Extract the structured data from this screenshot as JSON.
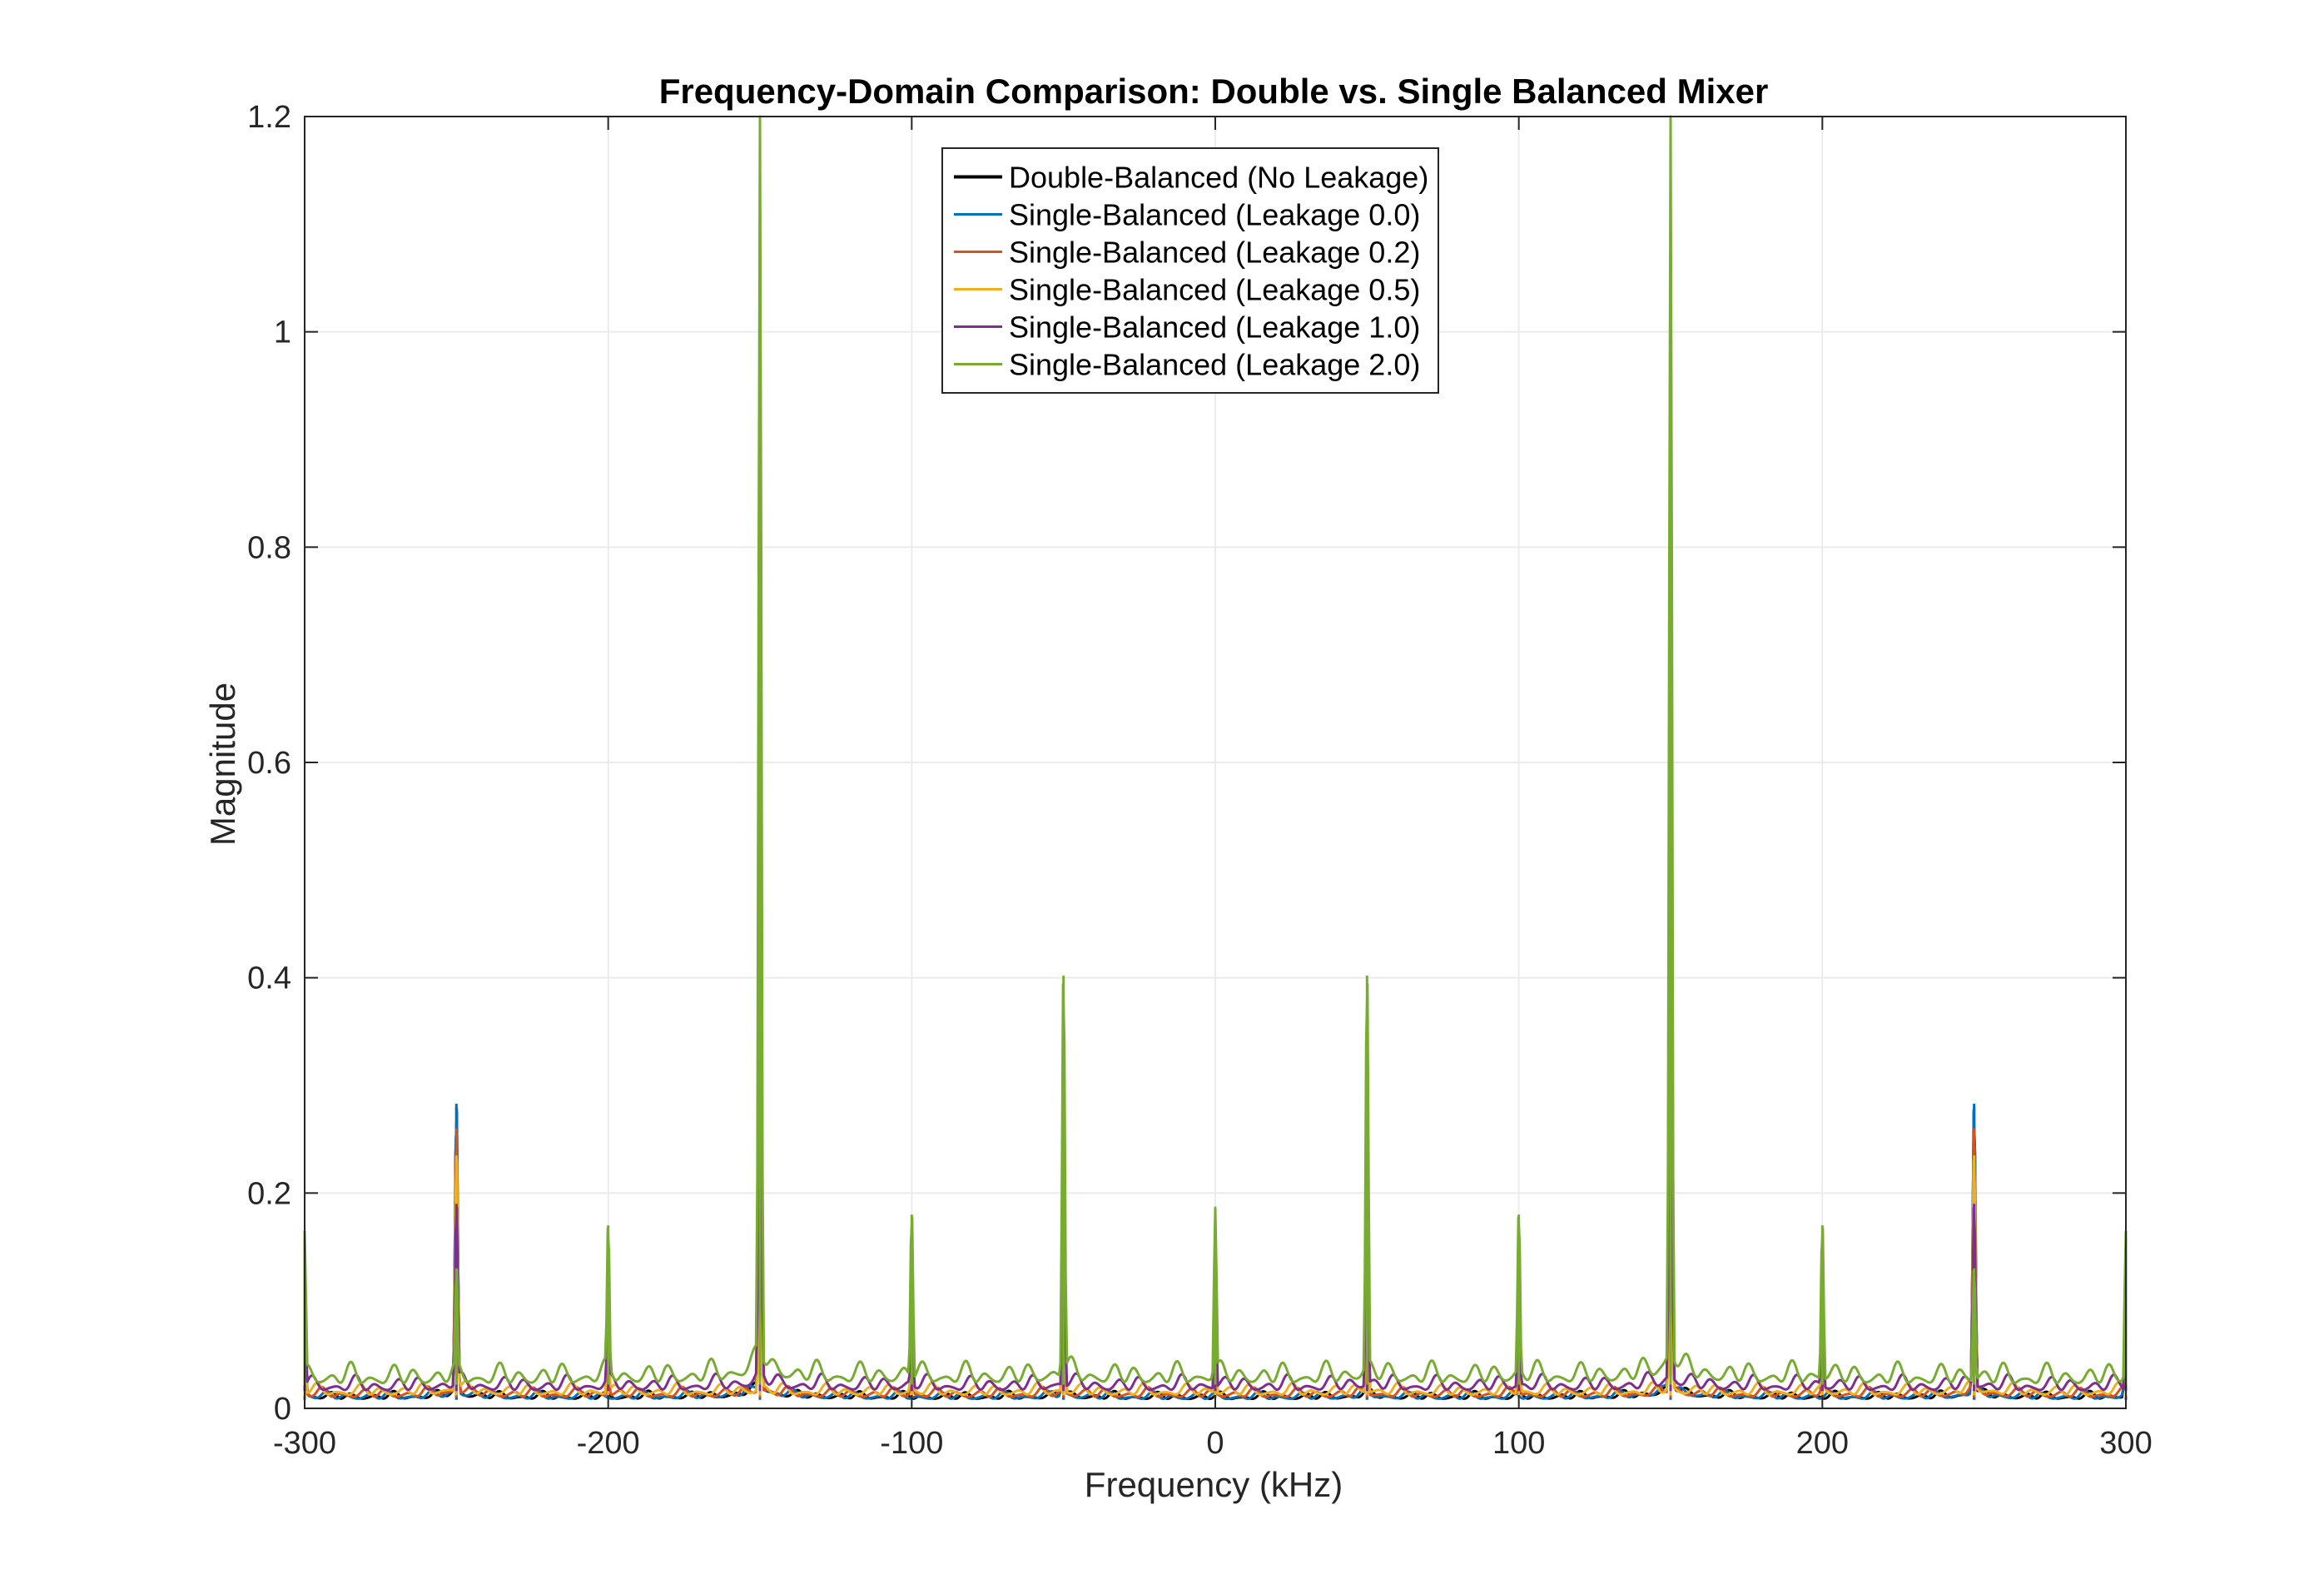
{
  "chart_data": {
    "type": "line",
    "title": "Frequency-Domain Comparison: Double vs. Single Balanced Mixer",
    "xlabel": "Frequency (kHz)",
    "ylabel": "Magnitude",
    "xlim": [
      -300,
      300
    ],
    "ylim": [
      0,
      1.2
    ],
    "xticks": [
      -300,
      -200,
      -100,
      0,
      100,
      200,
      300
    ],
    "xtick_labels": [
      "-300",
      "-200",
      "-100",
      "0",
      "100",
      "200",
      "300"
    ],
    "yticks": [
      0,
      0.2,
      0.4,
      0.6,
      0.8,
      1,
      1.2
    ],
    "ytick_labels": [
      "0",
      "0.2",
      "0.4",
      "0.6",
      "0.8",
      "1",
      "1.2"
    ],
    "grid": true,
    "legend_position": "top-center",
    "colors": {
      "double_balanced": "#000000",
      "leak_0_0": "#0072BD",
      "leak_0_2": "#D95319",
      "leak_0_5": "#EDB120",
      "leak_1_0": "#7E2F8E",
      "leak_2_0": "#77AC30",
      "grid": "#ebebeb",
      "axis": "#262626"
    },
    "series": [
      {
        "name": "Double-Balanced (No Leakage)",
        "color": "#000000",
        "baseline": 0.008,
        "peaks": [
          {
            "x": -250,
            "y": 0.28
          },
          {
            "x": -150,
            "y": 0.575
          },
          {
            "x": -50,
            "y": 0.15
          },
          {
            "x": 50,
            "y": 0.15
          },
          {
            "x": 150,
            "y": 0.575
          },
          {
            "x": 250,
            "y": 0.28
          },
          {
            "x": -300,
            "y": 0.1
          },
          {
            "x": 300,
            "y": 0.1
          }
        ]
      },
      {
        "name": "Single-Balanced (Leakage 0.0)",
        "color": "#0072BD",
        "baseline": 0.008,
        "peaks": [
          {
            "x": -250,
            "y": 0.283
          },
          {
            "x": -150,
            "y": 0.575
          },
          {
            "x": -50,
            "y": 0.15
          },
          {
            "x": 50,
            "y": 0.15
          },
          {
            "x": 150,
            "y": 0.575
          },
          {
            "x": 250,
            "y": 0.283
          },
          {
            "x": -300,
            "y": 0.1
          },
          {
            "x": 300,
            "y": 0.1
          }
        ]
      },
      {
        "name": "Single-Balanced (Leakage 0.2)",
        "color": "#D95319",
        "baseline": 0.01,
        "peaks": [
          {
            "x": -250,
            "y": 0.26
          },
          {
            "x": -150,
            "y": 0.275
          },
          {
            "x": -200,
            "y": 0.05
          },
          {
            "x": -100,
            "y": 0.05
          },
          {
            "x": -50,
            "y": 0.1
          },
          {
            "x": 0,
            "y": 0.05
          },
          {
            "x": 50,
            "y": 0.1
          },
          {
            "x": 100,
            "y": 0.05
          },
          {
            "x": 150,
            "y": 0.275
          },
          {
            "x": 200,
            "y": 0.05
          },
          {
            "x": 250,
            "y": 0.26
          },
          {
            "x": -300,
            "y": 0.06
          },
          {
            "x": 300,
            "y": 0.06
          }
        ]
      },
      {
        "name": "Single-Balanced (Leakage 0.5)",
        "color": "#EDB120",
        "baseline": 0.012,
        "peaks": [
          {
            "x": -250,
            "y": 0.235
          },
          {
            "x": -150,
            "y": 0.17
          },
          {
            "x": -200,
            "y": 0.07
          },
          {
            "x": -100,
            "y": 0.07
          },
          {
            "x": -50,
            "y": 0.12
          },
          {
            "x": 0,
            "y": 0.07
          },
          {
            "x": 50,
            "y": 0.12
          },
          {
            "x": 100,
            "y": 0.07
          },
          {
            "x": 150,
            "y": 0.17
          },
          {
            "x": 200,
            "y": 0.07
          },
          {
            "x": 250,
            "y": 0.235
          },
          {
            "x": -300,
            "y": 0.08
          },
          {
            "x": 300,
            "y": 0.08
          }
        ]
      },
      {
        "name": "Single-Balanced (Leakage 1.0)",
        "color": "#7E2F8E",
        "baseline": 0.016,
        "peaks": [
          {
            "x": -250,
            "y": 0.19
          },
          {
            "x": -150,
            "y": 0.5
          },
          {
            "x": -200,
            "y": 0.1
          },
          {
            "x": -100,
            "y": 0.1
          },
          {
            "x": -50,
            "y": 0.2
          },
          {
            "x": 0,
            "y": 0.1
          },
          {
            "x": 50,
            "y": 0.2
          },
          {
            "x": 100,
            "y": 0.1
          },
          {
            "x": 150,
            "y": 0.5
          },
          {
            "x": 200,
            "y": 0.1
          },
          {
            "x": 250,
            "y": 0.19
          },
          {
            "x": -300,
            "y": 0.1
          },
          {
            "x": 300,
            "y": 0.1
          }
        ]
      },
      {
        "name": "Single-Balanced (Leakage 2.0)",
        "color": "#77AC30",
        "baseline": 0.022,
        "peaks": [
          {
            "x": -250,
            "y": 0.13
          },
          {
            "x": -150,
            "y": 1.175
          },
          {
            "x": -200,
            "y": 0.17
          },
          {
            "x": -100,
            "y": 0.18
          },
          {
            "x": -50,
            "y": 0.402
          },
          {
            "x": 0,
            "y": 0.18
          },
          {
            "x": 50,
            "y": 0.402
          },
          {
            "x": 100,
            "y": 0.18
          },
          {
            "x": 150,
            "y": 1.175
          },
          {
            "x": 200,
            "y": 0.17
          },
          {
            "x": 250,
            "y": 0.13
          },
          {
            "x": -300,
            "y": 0.16
          },
          {
            "x": 300,
            "y": 0.16
          }
        ]
      }
    ]
  }
}
